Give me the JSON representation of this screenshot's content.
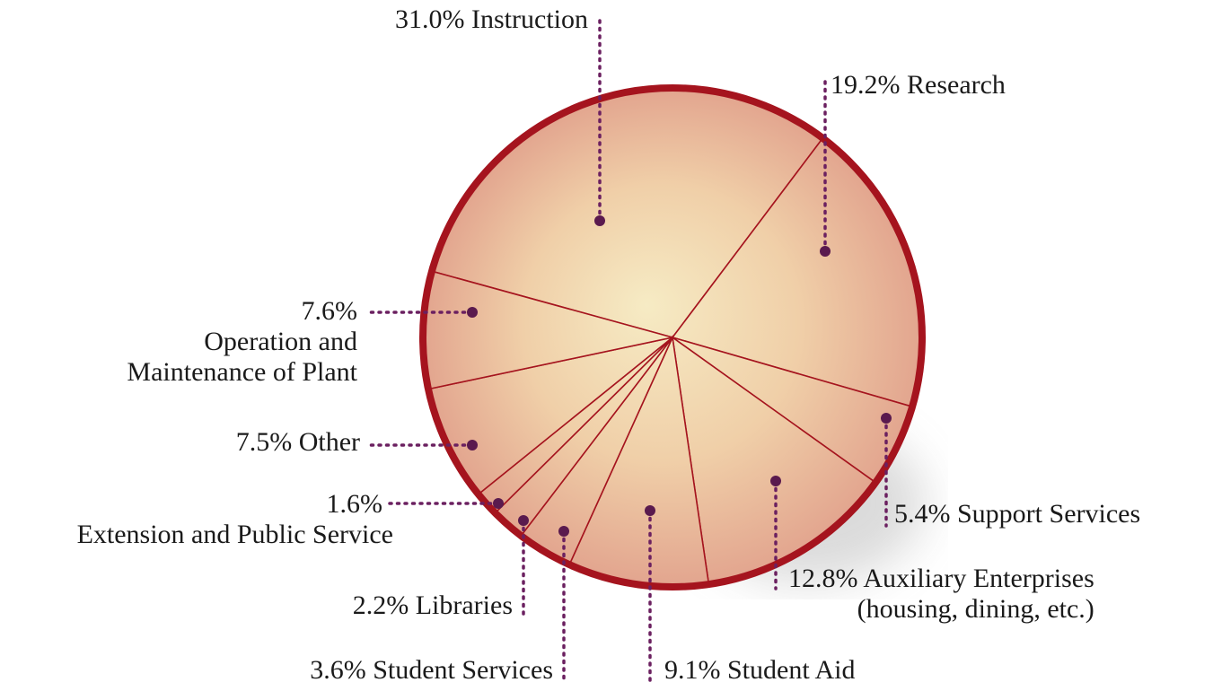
{
  "chart_data": {
    "type": "pie",
    "categories": [
      "Instruction",
      "Research",
      "Support Services",
      "Auxiliary Enterprises\n(housing, dining, etc.)",
      "Student Aid",
      "Student Services",
      "Libraries",
      "Extension and Public Service",
      "Other",
      "Operation and\nMaintenance of Plant"
    ],
    "values": [
      31.0,
      19.2,
      5.4,
      12.8,
      9.1,
      3.6,
      2.2,
      1.6,
      7.5,
      7.6
    ],
    "value_labels": [
      "31.0%",
      "19.2%",
      "5.4%",
      "12.8%",
      "9.1%",
      "3.6%",
      "2.2%",
      "1.6%",
      "7.5%",
      "7.6%"
    ],
    "color": "#a5141e"
  }
}
